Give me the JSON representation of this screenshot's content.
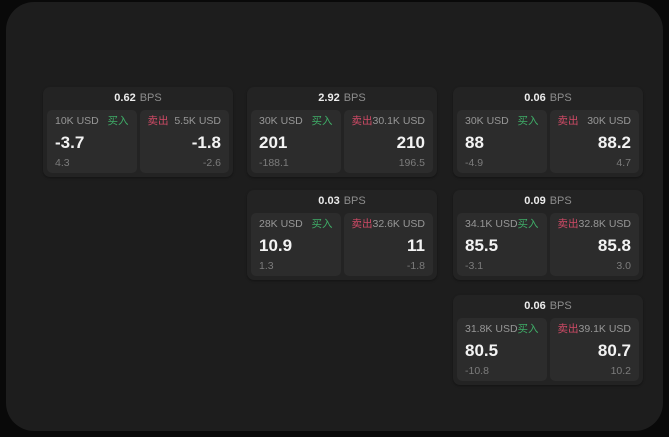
{
  "labels": {
    "buy": "买入",
    "sell": "卖出",
    "bps_unit": "BPS"
  },
  "colors": {
    "outer_background": "#090909",
    "surface": "#1d1d1d",
    "card_background": "#232323",
    "tile_background": "#2c2c2c",
    "text_primary": "#f3f3f3",
    "text_muted": "#979797",
    "buy_green": "#3fae68",
    "sell_red": "#d04a66"
  },
  "cards": [
    {
      "bps": "0.62",
      "buy": {
        "amount": "10K USD",
        "price": "-3.7",
        "delta": "4.3"
      },
      "sell": {
        "amount": "5.5K USD",
        "price": "-1.8",
        "delta": "-2.6"
      }
    },
    {
      "bps": "2.92",
      "buy": {
        "amount": "30K USD",
        "price": "201",
        "delta": "-188.1"
      },
      "sell": {
        "amount": "30.1K USD",
        "price": "210",
        "delta": "196.5"
      }
    },
    {
      "bps": "0.06",
      "buy": {
        "amount": "30K USD",
        "price": "88",
        "delta": "-4.9"
      },
      "sell": {
        "amount": "30K USD",
        "price": "88.2",
        "delta": "4.7"
      }
    },
    {
      "bps": "0.03",
      "buy": {
        "amount": "28K USD",
        "price": "10.9",
        "delta": "1.3"
      },
      "sell": {
        "amount": "32.6K USD",
        "price": "11",
        "delta": "-1.8"
      }
    },
    {
      "bps": "0.09",
      "buy": {
        "amount": "34.1K USD",
        "price": "85.5",
        "delta": "-3.1"
      },
      "sell": {
        "amount": "32.8K USD",
        "price": "85.8",
        "delta": "3.0"
      }
    },
    {
      "bps": "0.06",
      "buy": {
        "amount": "31.8K USD",
        "price": "80.5",
        "delta": "-10.8"
      },
      "sell": {
        "amount": "39.1K USD",
        "price": "80.7",
        "delta": "10.2"
      }
    }
  ]
}
